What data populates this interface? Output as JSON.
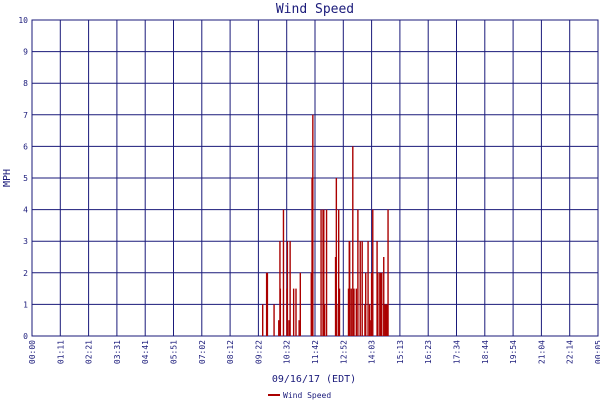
{
  "chart_data": {
    "type": "bar",
    "title": "Wind Speed",
    "xlabel": "09/16/17 (EDT)",
    "ylabel": "MPH",
    "ylim": [
      0,
      10
    ],
    "yticks": [
      "0",
      "1",
      "2",
      "3",
      "4",
      "5",
      "6",
      "7",
      "8",
      "9",
      "10"
    ],
    "xticks": [
      "00:00",
      "01:11",
      "02:21",
      "03:31",
      "04:41",
      "05:51",
      "07:02",
      "08:12",
      "09:22",
      "10:32",
      "11:42",
      "12:52",
      "14:03",
      "15:13",
      "16:23",
      "17:34",
      "18:44",
      "19:54",
      "21:04",
      "22:14",
      "00:05"
    ],
    "xlim_minutes": [
      0,
      1445
    ],
    "grid": true,
    "legend": "bottom-center",
    "series": [
      {
        "name": "Wind Speed",
        "color": "#aa0000",
        "x_time": [
          "09:49",
          "09:59",
          "10:01",
          "10:18",
          "10:30",
          "10:33",
          "10:34",
          "10:42",
          "10:51",
          "10:52",
          "10:56",
          "10:59",
          "11:08",
          "11:14",
          "11:22",
          "11:25",
          "11:53",
          "11:55",
          "11:57",
          "12:18",
          "12:23",
          "12:25",
          "12:27",
          "12:32",
          "12:55",
          "12:57",
          "12:58",
          "13:03",
          "13:05",
          "13:28",
          "13:30",
          "13:31",
          "13:35",
          "13:39",
          "13:42",
          "13:48",
          "13:52",
          "13:58",
          "14:03",
          "14:10",
          "14:12",
          "14:18",
          "14:22",
          "14:25",
          "14:27",
          "14:30",
          "14:41",
          "14:43",
          "14:48",
          "14:51",
          "14:53",
          "14:58",
          "15:01",
          "15:04",
          "15:06",
          "15:09"
        ],
        "values": [
          1,
          2,
          2,
          1,
          0.5,
          3,
          1.5,
          4,
          1.5,
          3,
          0.5,
          3,
          1.5,
          1.5,
          0.5,
          2,
          2,
          5,
          7,
          4,
          4,
          4,
          1,
          4,
          2.5,
          5,
          1,
          4,
          1.5,
          1.5,
          3,
          3,
          1.5,
          6,
          1.5,
          1.5,
          4,
          3,
          3,
          1,
          2,
          3,
          1,
          0.5,
          2,
          4,
          3,
          2,
          2,
          2,
          2,
          2.5,
          1,
          1,
          1,
          4
        ]
      }
    ]
  }
}
